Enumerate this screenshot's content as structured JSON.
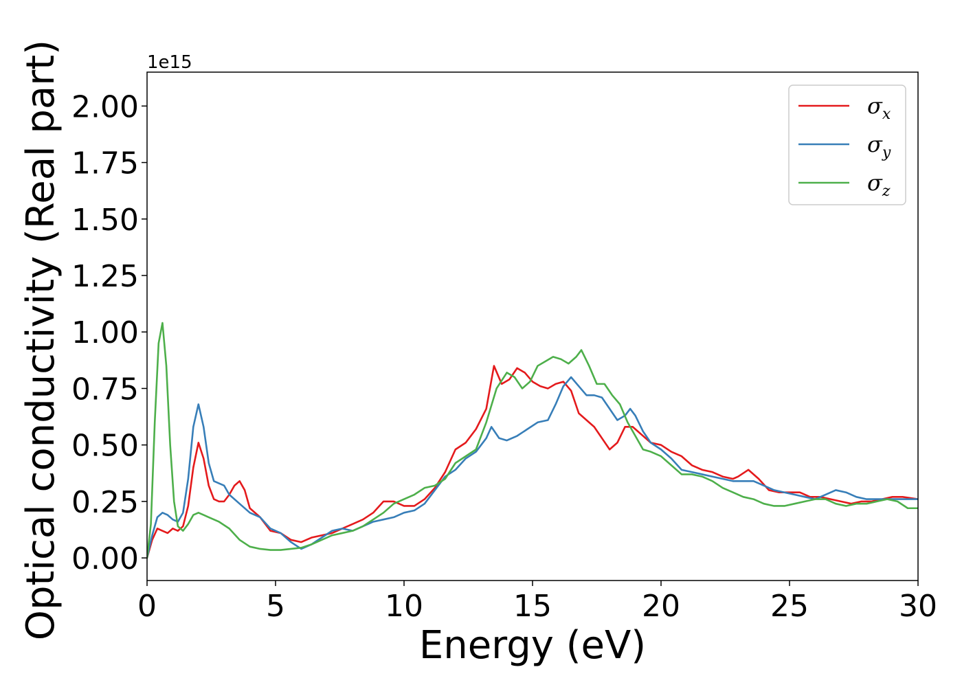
{
  "chart_data": {
    "type": "line",
    "xlabel": "Energy (eV)",
    "ylabel": "Optical conductivity (Real part)",
    "y_offset_text": "1e15",
    "xlim": [
      0,
      30
    ],
    "ylim": [
      -0.1,
      2.15
    ],
    "x_ticks": [
      0,
      5,
      10,
      15,
      20,
      25,
      30
    ],
    "x_tick_labels": [
      "0",
      "5",
      "10",
      "15",
      "20",
      "25",
      "30"
    ],
    "y_ticks": [
      0.0,
      0.25,
      0.5,
      0.75,
      1.0,
      1.25,
      1.5,
      1.75,
      2.0
    ],
    "y_tick_labels": [
      "0.00",
      "0.25",
      "0.50",
      "0.75",
      "1.00",
      "1.25",
      "1.50",
      "1.75",
      "2.00"
    ],
    "grid": false,
    "legend_position": "top-right",
    "series": [
      {
        "name": "σx",
        "legend_symbol": "σ",
        "legend_subscript": "x",
        "color": "#e41a1c",
        "points": [
          [
            0,
            0
          ],
          [
            0.2,
            0.08
          ],
          [
            0.4,
            0.13
          ],
          [
            0.6,
            0.12
          ],
          [
            0.8,
            0.11
          ],
          [
            1.0,
            0.13
          ],
          [
            1.2,
            0.12
          ],
          [
            1.4,
            0.14
          ],
          [
            1.6,
            0.23
          ],
          [
            1.8,
            0.4
          ],
          [
            2.0,
            0.51
          ],
          [
            2.2,
            0.44
          ],
          [
            2.4,
            0.32
          ],
          [
            2.6,
            0.26
          ],
          [
            2.8,
            0.25
          ],
          [
            3.0,
            0.25
          ],
          [
            3.2,
            0.28
          ],
          [
            3.4,
            0.32
          ],
          [
            3.6,
            0.34
          ],
          [
            3.8,
            0.3
          ],
          [
            4.0,
            0.22
          ],
          [
            4.4,
            0.18
          ],
          [
            4.8,
            0.12
          ],
          [
            5.2,
            0.11
          ],
          [
            5.6,
            0.08
          ],
          [
            6.0,
            0.07
          ],
          [
            6.4,
            0.09
          ],
          [
            6.8,
            0.1
          ],
          [
            7.2,
            0.11
          ],
          [
            7.6,
            0.13
          ],
          [
            8.0,
            0.15
          ],
          [
            8.4,
            0.17
          ],
          [
            8.8,
            0.2
          ],
          [
            9.2,
            0.25
          ],
          [
            9.6,
            0.25
          ],
          [
            10.0,
            0.23
          ],
          [
            10.4,
            0.23
          ],
          [
            10.8,
            0.26
          ],
          [
            11.2,
            0.31
          ],
          [
            11.6,
            0.38
          ],
          [
            12.0,
            0.48
          ],
          [
            12.4,
            0.51
          ],
          [
            12.8,
            0.57
          ],
          [
            13.2,
            0.66
          ],
          [
            13.5,
            0.85
          ],
          [
            13.8,
            0.77
          ],
          [
            14.1,
            0.79
          ],
          [
            14.4,
            0.84
          ],
          [
            14.7,
            0.82
          ],
          [
            15.0,
            0.78
          ],
          [
            15.3,
            0.76
          ],
          [
            15.6,
            0.75
          ],
          [
            15.9,
            0.77
          ],
          [
            16.2,
            0.78
          ],
          [
            16.5,
            0.74
          ],
          [
            16.8,
            0.64
          ],
          [
            17.1,
            0.61
          ],
          [
            17.4,
            0.58
          ],
          [
            17.7,
            0.53
          ],
          [
            18.0,
            0.48
          ],
          [
            18.3,
            0.51
          ],
          [
            18.6,
            0.58
          ],
          [
            18.9,
            0.58
          ],
          [
            19.2,
            0.55
          ],
          [
            19.6,
            0.51
          ],
          [
            20.0,
            0.5
          ],
          [
            20.4,
            0.47
          ],
          [
            20.8,
            0.45
          ],
          [
            21.2,
            0.41
          ],
          [
            21.6,
            0.39
          ],
          [
            22.0,
            0.38
          ],
          [
            22.4,
            0.36
          ],
          [
            22.8,
            0.35
          ],
          [
            23.0,
            0.36
          ],
          [
            23.4,
            0.39
          ],
          [
            23.8,
            0.35
          ],
          [
            24.2,
            0.3
          ],
          [
            24.6,
            0.29
          ],
          [
            25.0,
            0.29
          ],
          [
            25.4,
            0.29
          ],
          [
            25.8,
            0.27
          ],
          [
            26.2,
            0.27
          ],
          [
            26.6,
            0.26
          ],
          [
            27.0,
            0.25
          ],
          [
            27.4,
            0.24
          ],
          [
            27.8,
            0.25
          ],
          [
            28.2,
            0.25
          ],
          [
            28.6,
            0.26
          ],
          [
            29.0,
            0.27
          ],
          [
            29.4,
            0.27
          ],
          [
            30.0,
            0.26
          ]
        ]
      },
      {
        "name": "σy",
        "legend_symbol": "σ",
        "legend_subscript": "y",
        "color": "#377eb8",
        "points": [
          [
            0,
            0
          ],
          [
            0.2,
            0.1
          ],
          [
            0.4,
            0.18
          ],
          [
            0.6,
            0.2
          ],
          [
            0.8,
            0.19
          ],
          [
            1.0,
            0.17
          ],
          [
            1.2,
            0.16
          ],
          [
            1.4,
            0.2
          ],
          [
            1.6,
            0.35
          ],
          [
            1.8,
            0.58
          ],
          [
            2.0,
            0.68
          ],
          [
            2.2,
            0.58
          ],
          [
            2.4,
            0.42
          ],
          [
            2.6,
            0.34
          ],
          [
            2.8,
            0.33
          ],
          [
            3.0,
            0.32
          ],
          [
            3.2,
            0.28
          ],
          [
            3.6,
            0.24
          ],
          [
            4.0,
            0.2
          ],
          [
            4.4,
            0.18
          ],
          [
            4.8,
            0.13
          ],
          [
            5.2,
            0.11
          ],
          [
            5.6,
            0.07
          ],
          [
            6.0,
            0.04
          ],
          [
            6.4,
            0.06
          ],
          [
            6.8,
            0.09
          ],
          [
            7.2,
            0.12
          ],
          [
            7.6,
            0.13
          ],
          [
            8.0,
            0.12
          ],
          [
            8.4,
            0.14
          ],
          [
            8.8,
            0.16
          ],
          [
            9.2,
            0.17
          ],
          [
            9.6,
            0.18
          ],
          [
            10.0,
            0.2
          ],
          [
            10.4,
            0.21
          ],
          [
            10.8,
            0.24
          ],
          [
            11.2,
            0.3
          ],
          [
            11.6,
            0.36
          ],
          [
            12.0,
            0.39
          ],
          [
            12.4,
            0.44
          ],
          [
            12.8,
            0.47
          ],
          [
            13.2,
            0.53
          ],
          [
            13.4,
            0.58
          ],
          [
            13.7,
            0.53
          ],
          [
            14.0,
            0.52
          ],
          [
            14.4,
            0.54
          ],
          [
            14.8,
            0.57
          ],
          [
            15.2,
            0.6
          ],
          [
            15.6,
            0.61
          ],
          [
            15.9,
            0.68
          ],
          [
            16.2,
            0.76
          ],
          [
            16.5,
            0.8
          ],
          [
            16.8,
            0.76
          ],
          [
            17.1,
            0.72
          ],
          [
            17.4,
            0.72
          ],
          [
            17.7,
            0.71
          ],
          [
            18.0,
            0.66
          ],
          [
            18.3,
            0.61
          ],
          [
            18.6,
            0.63
          ],
          [
            18.8,
            0.66
          ],
          [
            19.0,
            0.63
          ],
          [
            19.3,
            0.56
          ],
          [
            19.6,
            0.51
          ],
          [
            20.0,
            0.48
          ],
          [
            20.4,
            0.44
          ],
          [
            20.8,
            0.39
          ],
          [
            21.2,
            0.38
          ],
          [
            21.6,
            0.37
          ],
          [
            22.0,
            0.36
          ],
          [
            22.4,
            0.35
          ],
          [
            22.8,
            0.34
          ],
          [
            23.2,
            0.34
          ],
          [
            23.6,
            0.34
          ],
          [
            24.0,
            0.32
          ],
          [
            24.4,
            0.3
          ],
          [
            24.8,
            0.29
          ],
          [
            25.2,
            0.28
          ],
          [
            25.6,
            0.27
          ],
          [
            26.0,
            0.26
          ],
          [
            26.4,
            0.28
          ],
          [
            26.8,
            0.3
          ],
          [
            27.2,
            0.29
          ],
          [
            27.6,
            0.27
          ],
          [
            28.0,
            0.26
          ],
          [
            28.4,
            0.26
          ],
          [
            28.8,
            0.26
          ],
          [
            29.2,
            0.26
          ],
          [
            29.6,
            0.26
          ],
          [
            30.0,
            0.26
          ]
        ]
      },
      {
        "name": "σz",
        "legend_symbol": "σ",
        "legend_subscript": "z",
        "color": "#4daf4a",
        "points": [
          [
            0,
            0
          ],
          [
            0.15,
            0.15
          ],
          [
            0.3,
            0.6
          ],
          [
            0.45,
            0.95
          ],
          [
            0.6,
            1.04
          ],
          [
            0.75,
            0.85
          ],
          [
            0.9,
            0.5
          ],
          [
            1.05,
            0.25
          ],
          [
            1.2,
            0.14
          ],
          [
            1.4,
            0.12
          ],
          [
            1.6,
            0.15
          ],
          [
            1.8,
            0.19
          ],
          [
            2.0,
            0.2
          ],
          [
            2.2,
            0.19
          ],
          [
            2.4,
            0.18
          ],
          [
            2.8,
            0.16
          ],
          [
            3.2,
            0.13
          ],
          [
            3.6,
            0.08
          ],
          [
            4.0,
            0.05
          ],
          [
            4.4,
            0.04
          ],
          [
            4.8,
            0.035
          ],
          [
            5.2,
            0.035
          ],
          [
            5.6,
            0.04
          ],
          [
            6.0,
            0.045
          ],
          [
            6.4,
            0.06
          ],
          [
            6.8,
            0.08
          ],
          [
            7.2,
            0.1
          ],
          [
            7.6,
            0.11
          ],
          [
            8.0,
            0.12
          ],
          [
            8.4,
            0.14
          ],
          [
            8.8,
            0.17
          ],
          [
            9.2,
            0.2
          ],
          [
            9.6,
            0.24
          ],
          [
            10.0,
            0.26
          ],
          [
            10.4,
            0.28
          ],
          [
            10.8,
            0.31
          ],
          [
            11.2,
            0.32
          ],
          [
            11.6,
            0.35
          ],
          [
            12.0,
            0.42
          ],
          [
            12.4,
            0.45
          ],
          [
            12.8,
            0.48
          ],
          [
            13.2,
            0.6
          ],
          [
            13.6,
            0.75
          ],
          [
            14.0,
            0.82
          ],
          [
            14.3,
            0.8
          ],
          [
            14.6,
            0.75
          ],
          [
            14.9,
            0.78
          ],
          [
            15.2,
            0.85
          ],
          [
            15.5,
            0.87
          ],
          [
            15.8,
            0.89
          ],
          [
            16.1,
            0.88
          ],
          [
            16.4,
            0.86
          ],
          [
            16.7,
            0.89
          ],
          [
            16.9,
            0.92
          ],
          [
            17.2,
            0.85
          ],
          [
            17.5,
            0.77
          ],
          [
            17.8,
            0.77
          ],
          [
            18.1,
            0.72
          ],
          [
            18.4,
            0.68
          ],
          [
            18.7,
            0.6
          ],
          [
            19.0,
            0.54
          ],
          [
            19.3,
            0.48
          ],
          [
            19.6,
            0.47
          ],
          [
            20.0,
            0.45
          ],
          [
            20.4,
            0.41
          ],
          [
            20.8,
            0.37
          ],
          [
            21.2,
            0.37
          ],
          [
            21.6,
            0.36
          ],
          [
            22.0,
            0.34
          ],
          [
            22.4,
            0.31
          ],
          [
            22.8,
            0.29
          ],
          [
            23.2,
            0.27
          ],
          [
            23.6,
            0.26
          ],
          [
            24.0,
            0.24
          ],
          [
            24.4,
            0.23
          ],
          [
            24.8,
            0.23
          ],
          [
            25.2,
            0.24
          ],
          [
            25.6,
            0.25
          ],
          [
            26.0,
            0.26
          ],
          [
            26.4,
            0.26
          ],
          [
            26.8,
            0.24
          ],
          [
            27.2,
            0.23
          ],
          [
            27.6,
            0.24
          ],
          [
            28.0,
            0.24
          ],
          [
            28.4,
            0.25
          ],
          [
            28.8,
            0.26
          ],
          [
            29.2,
            0.25
          ],
          [
            29.6,
            0.22
          ],
          [
            30.0,
            0.22
          ]
        ]
      }
    ]
  }
}
